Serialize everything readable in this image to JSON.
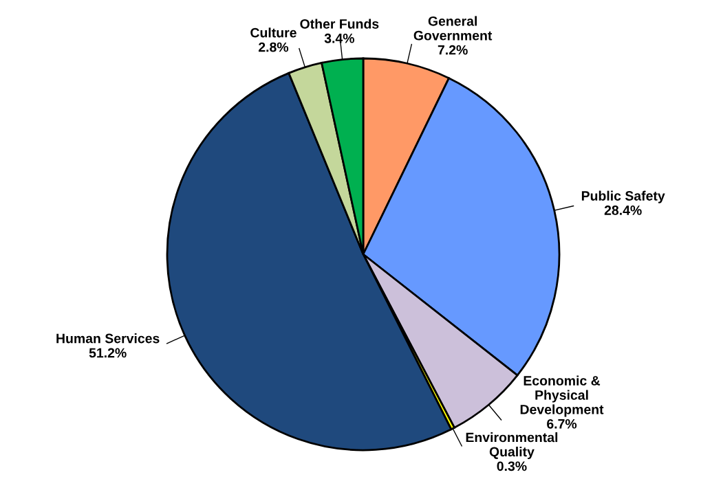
{
  "chart_data": {
    "type": "pie",
    "categories": [
      "General\nGovernment",
      "Public Safety",
      "Economic &\nPhysical\nDevelopment",
      "Environmental\nQuality",
      "Human Services",
      "Culture",
      "Other Funds"
    ],
    "values": [
      7.2,
      28.4,
      6.7,
      0.3,
      51.2,
      2.8,
      3.4
    ],
    "colors": [
      "#ff9966",
      "#6699ff",
      "#ccc0da",
      "#ffff00",
      "#1f497d",
      "#c4d79b",
      "#00b050"
    ],
    "value_labels": [
      "7.2%",
      "28.4%",
      "6.7%",
      "0.3%",
      "51.2%",
      "2.8%",
      "3.4%"
    ]
  }
}
